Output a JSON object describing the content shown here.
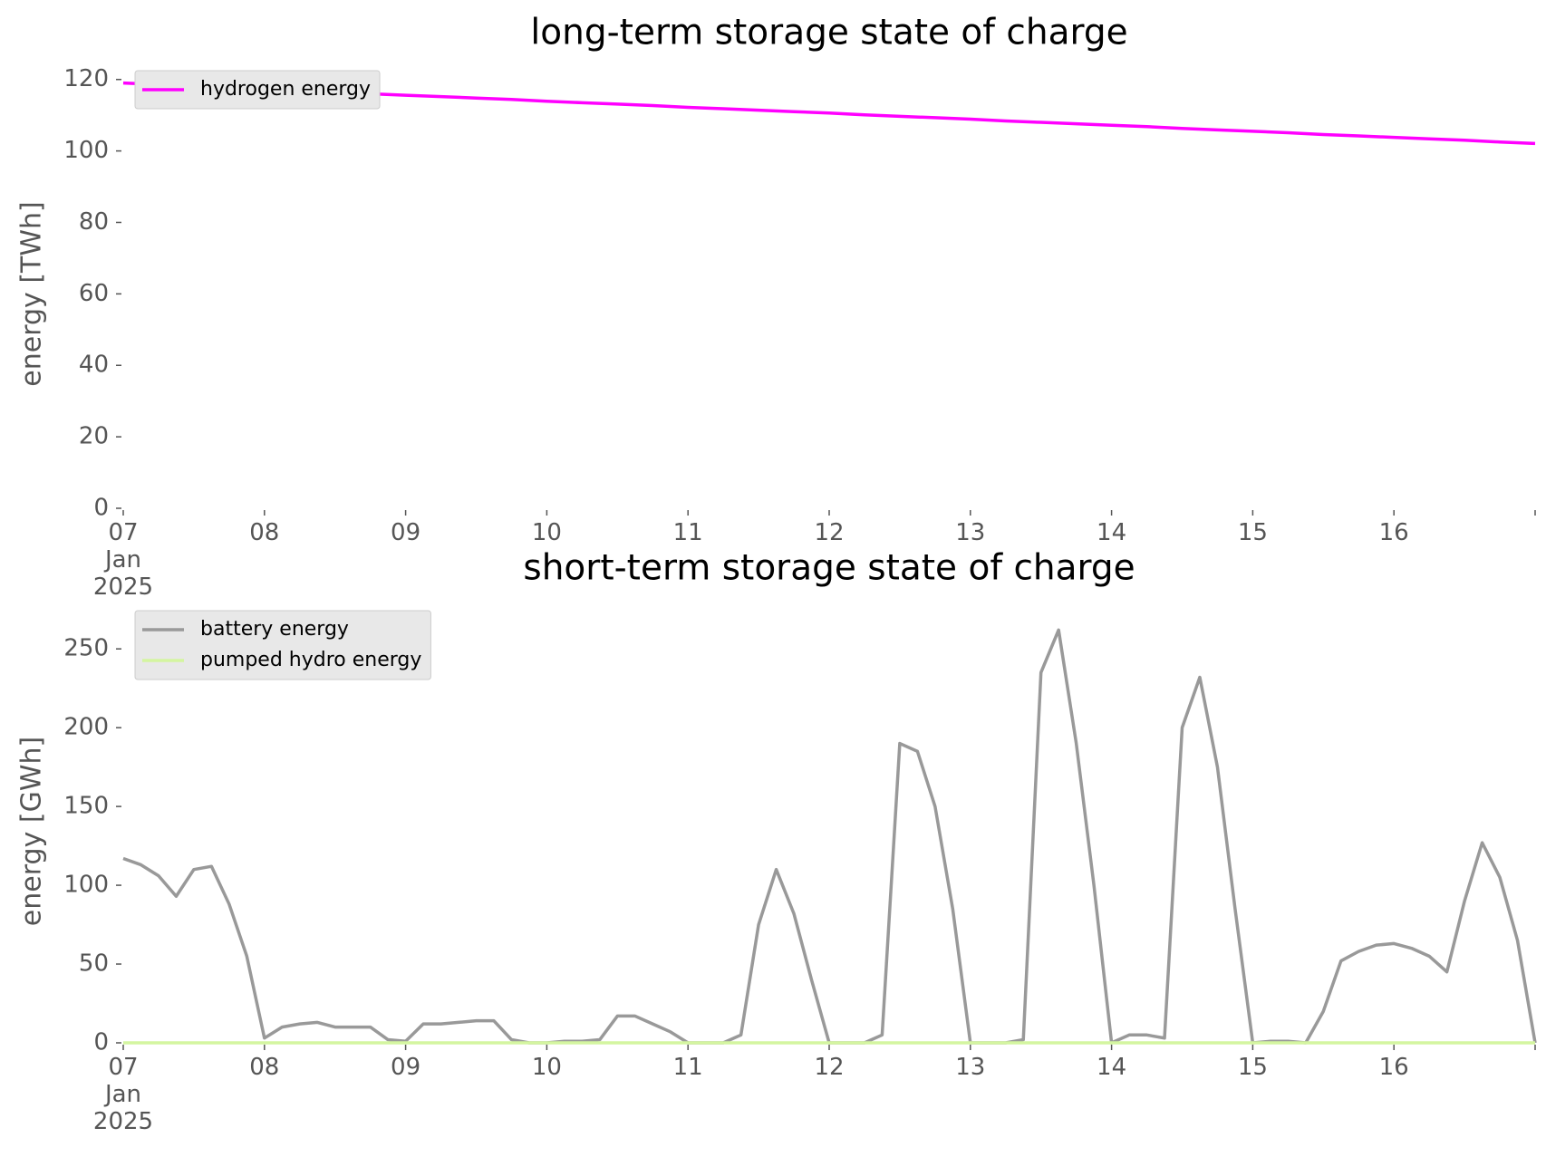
{
  "chart_data": [
    {
      "type": "line",
      "title": "long-term storage state of charge",
      "ylabel": "energy [TWh]",
      "x": [
        "2025-01-07T00:00",
        "2025-01-07T06:00",
        "2025-01-07T12:00",
        "2025-01-07T18:00",
        "2025-01-08T00:00",
        "2025-01-08T06:00",
        "2025-01-08T12:00",
        "2025-01-08T18:00",
        "2025-01-09T00:00",
        "2025-01-09T06:00",
        "2025-01-09T12:00",
        "2025-01-09T18:00",
        "2025-01-10T00:00",
        "2025-01-10T06:00",
        "2025-01-10T12:00",
        "2025-01-10T18:00",
        "2025-01-11T00:00",
        "2025-01-11T06:00",
        "2025-01-11T12:00",
        "2025-01-11T18:00",
        "2025-01-12T00:00",
        "2025-01-12T06:00",
        "2025-01-12T12:00",
        "2025-01-12T18:00",
        "2025-01-13T00:00",
        "2025-01-13T06:00",
        "2025-01-13T12:00",
        "2025-01-13T18:00",
        "2025-01-14T00:00",
        "2025-01-14T06:00",
        "2025-01-14T12:00",
        "2025-01-14T18:00",
        "2025-01-15T00:00",
        "2025-01-15T06:00",
        "2025-01-15T12:00",
        "2025-01-15T18:00",
        "2025-01-16T00:00",
        "2025-01-16T06:00",
        "2025-01-16T12:00",
        "2025-01-16T18:00",
        "2025-01-17T00:00"
      ],
      "series": [
        {
          "name": "hydrogen energy",
          "color": "#ff00ff",
          "values": [
            119.0,
            118.6,
            118.2,
            117.7,
            117.3,
            116.9,
            116.5,
            116.0,
            115.6,
            115.2,
            114.8,
            114.4,
            113.9,
            113.5,
            113.1,
            112.7,
            112.2,
            111.8,
            111.4,
            111.0,
            110.6,
            110.1,
            109.7,
            109.3,
            108.9,
            108.4,
            108.0,
            107.6,
            107.2,
            106.8,
            106.3,
            105.9,
            105.5,
            105.1,
            104.6,
            104.2,
            103.8,
            103.4,
            103.0,
            102.5,
            102.1
          ]
        }
      ],
      "xlim": [
        "2025-01-07",
        "2025-01-17"
      ],
      "xticks": [
        {
          "value": "2025-01-07",
          "label": "07\nJan\n2025"
        },
        {
          "value": "2025-01-08",
          "label": "08"
        },
        {
          "value": "2025-01-09",
          "label": "09"
        },
        {
          "value": "2025-01-10",
          "label": "10"
        },
        {
          "value": "2025-01-11",
          "label": "11"
        },
        {
          "value": "2025-01-12",
          "label": "12"
        },
        {
          "value": "2025-01-13",
          "label": "13"
        },
        {
          "value": "2025-01-14",
          "label": "14"
        },
        {
          "value": "2025-01-15",
          "label": "15"
        },
        {
          "value": "2025-01-16",
          "label": "16"
        },
        {
          "value": "2025-01-17",
          "label": null
        }
      ],
      "ylim": [
        0,
        125
      ],
      "yticks": [
        0,
        20,
        40,
        60,
        80,
        100,
        120
      ],
      "legend": "upper left"
    },
    {
      "type": "line",
      "title": "short-term storage state of charge",
      "ylabel": "energy [GWh]",
      "x": [
        "2025-01-07T00:00",
        "2025-01-07T03:00",
        "2025-01-07T06:00",
        "2025-01-07T09:00",
        "2025-01-07T12:00",
        "2025-01-07T15:00",
        "2025-01-07T18:00",
        "2025-01-07T21:00",
        "2025-01-08T00:00",
        "2025-01-08T03:00",
        "2025-01-08T06:00",
        "2025-01-08T09:00",
        "2025-01-08T12:00",
        "2025-01-08T15:00",
        "2025-01-08T18:00",
        "2025-01-08T21:00",
        "2025-01-09T00:00",
        "2025-01-09T03:00",
        "2025-01-09T06:00",
        "2025-01-09T09:00",
        "2025-01-09T12:00",
        "2025-01-09T15:00",
        "2025-01-09T18:00",
        "2025-01-09T21:00",
        "2025-01-10T00:00",
        "2025-01-10T03:00",
        "2025-01-10T06:00",
        "2025-01-10T09:00",
        "2025-01-10T12:00",
        "2025-01-10T15:00",
        "2025-01-10T18:00",
        "2025-01-10T21:00",
        "2025-01-11T00:00",
        "2025-01-11T03:00",
        "2025-01-11T06:00",
        "2025-01-11T09:00",
        "2025-01-11T12:00",
        "2025-01-11T15:00",
        "2025-01-11T18:00",
        "2025-01-11T21:00",
        "2025-01-12T00:00",
        "2025-01-12T03:00",
        "2025-01-12T06:00",
        "2025-01-12T09:00",
        "2025-01-12T12:00",
        "2025-01-12T15:00",
        "2025-01-12T18:00",
        "2025-01-12T21:00",
        "2025-01-13T00:00",
        "2025-01-13T03:00",
        "2025-01-13T06:00",
        "2025-01-13T09:00",
        "2025-01-13T12:00",
        "2025-01-13T15:00",
        "2025-01-13T18:00",
        "2025-01-13T21:00",
        "2025-01-14T00:00",
        "2025-01-14T03:00",
        "2025-01-14T06:00",
        "2025-01-14T09:00",
        "2025-01-14T12:00",
        "2025-01-14T15:00",
        "2025-01-14T18:00",
        "2025-01-14T21:00",
        "2025-01-15T00:00",
        "2025-01-15T03:00",
        "2025-01-15T06:00",
        "2025-01-15T09:00",
        "2025-01-15T12:00",
        "2025-01-15T15:00",
        "2025-01-15T18:00",
        "2025-01-15T21:00",
        "2025-01-16T00:00",
        "2025-01-16T03:00",
        "2025-01-16T06:00",
        "2025-01-16T09:00",
        "2025-01-16T12:00",
        "2025-01-16T15:00",
        "2025-01-16T18:00",
        "2025-01-16T21:00",
        "2025-01-17T00:00"
      ],
      "series": [
        {
          "name": "battery energy",
          "color": "#999999",
          "values": [
            117,
            113,
            106,
            93,
            110,
            112,
            88,
            55,
            3,
            10,
            12,
            13,
            10,
            10,
            10,
            2,
            1,
            12,
            12,
            13,
            14,
            14,
            2,
            0,
            0,
            1,
            1,
            2,
            17,
            17,
            12,
            7,
            0,
            0,
            0,
            5,
            75,
            110,
            82,
            40,
            0,
            0,
            0,
            5,
            190,
            185,
            150,
            85,
            0,
            0,
            0,
            2,
            235,
            262,
            190,
            100,
            0,
            5,
            5,
            3,
            200,
            232,
            175,
            85,
            0,
            1,
            1,
            0,
            20,
            52,
            58,
            62,
            63,
            60,
            55,
            45,
            90,
            127,
            105,
            65,
            0
          ]
        },
        {
          "name": "pumped hydro energy",
          "color": "#d4f5a0",
          "values": [
            0,
            0,
            0,
            0,
            0,
            0,
            0,
            0,
            0,
            0,
            0,
            0,
            0,
            0,
            0,
            0,
            0,
            0,
            0,
            0,
            0,
            0,
            0,
            0,
            0,
            0,
            0,
            0,
            0,
            0,
            0,
            0,
            0,
            0,
            0,
            0,
            0,
            0,
            0,
            0,
            0,
            0,
            0,
            0,
            0,
            0,
            0,
            0,
            0,
            0,
            0,
            0,
            0,
            0,
            0,
            0,
            0,
            0,
            0,
            0,
            0,
            0,
            0,
            0,
            0,
            0,
            0,
            0,
            0,
            0,
            0,
            0,
            0,
            0,
            0,
            0,
            0,
            0,
            0,
            0,
            0
          ]
        }
      ],
      "xlim": [
        "2025-01-07",
        "2025-01-17"
      ],
      "xticks": [
        {
          "value": "2025-01-07",
          "label": "07\nJan\n2025"
        },
        {
          "value": "2025-01-08",
          "label": "08"
        },
        {
          "value": "2025-01-09",
          "label": "09"
        },
        {
          "value": "2025-01-10",
          "label": "10"
        },
        {
          "value": "2025-01-11",
          "label": "11"
        },
        {
          "value": "2025-01-12",
          "label": "12"
        },
        {
          "value": "2025-01-13",
          "label": "13"
        },
        {
          "value": "2025-01-14",
          "label": "14"
        },
        {
          "value": "2025-01-15",
          "label": "15"
        },
        {
          "value": "2025-01-16",
          "label": "16"
        },
        {
          "value": "2025-01-17",
          "label": null
        }
      ],
      "ylim": [
        0,
        280
      ],
      "yticks": [
        0,
        50,
        100,
        150,
        200,
        250
      ],
      "legend": "upper left"
    }
  ]
}
